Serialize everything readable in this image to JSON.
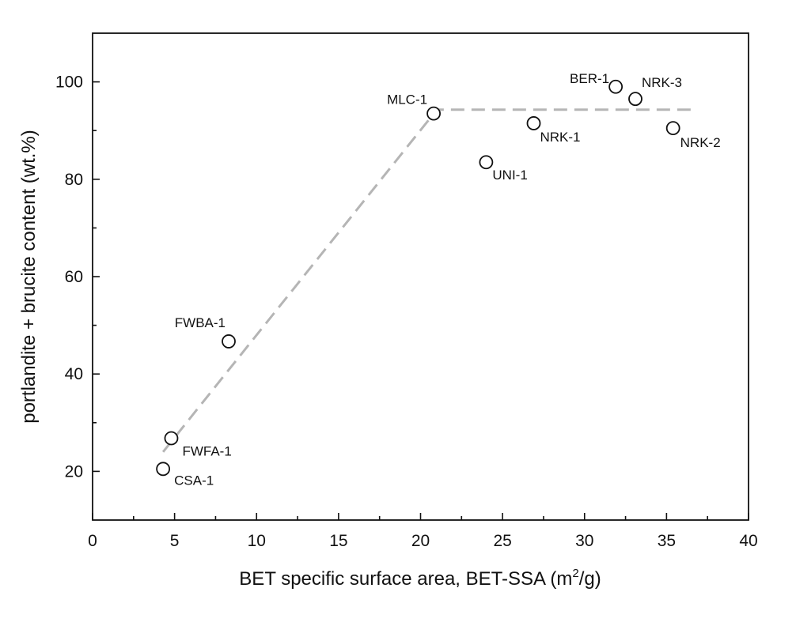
{
  "chart_data": {
    "type": "scatter",
    "title": "",
    "xlabel_main": "BET specific surface area, BET-SSA (m",
    "xlabel_sup": "2",
    "xlabel_tail": "/g)",
    "ylabel": "portlandite + brucite content (wt.%)",
    "xlim": [
      0,
      40
    ],
    "ylim": [
      10,
      110
    ],
    "x_ticks": [
      0,
      5,
      10,
      15,
      20,
      25,
      30,
      35,
      40
    ],
    "y_ticks": [
      20,
      40,
      60,
      80,
      100
    ],
    "grid": false,
    "points": [
      {
        "label": "CSA-1",
        "x": 4.3,
        "y": 20.5
      },
      {
        "label": "FWFA-1",
        "x": 4.8,
        "y": 26.8
      },
      {
        "label": "FWBA-1",
        "x": 8.3,
        "y": 46.7
      },
      {
        "label": "MLC-1",
        "x": 20.8,
        "y": 93.5
      },
      {
        "label": "UNI-1",
        "x": 24.0,
        "y": 83.5
      },
      {
        "label": "NRK-1",
        "x": 26.9,
        "y": 91.5
      },
      {
        "label": "BER-1",
        "x": 31.9,
        "y": 99.0
      },
      {
        "label": "NRK-3",
        "x": 33.1,
        "y": 96.5
      },
      {
        "label": "NRK-2",
        "x": 35.4,
        "y": 90.5
      }
    ],
    "trendline": [
      {
        "x": 4.3,
        "y": 24.0
      },
      {
        "x": 21.0,
        "y": 94.3
      },
      {
        "x": 36.5,
        "y": 94.3
      }
    ],
    "colors": {
      "marker_edge": "#111111",
      "marker_fill": "#ffffff",
      "trendline": "#b5b5b5"
    }
  }
}
